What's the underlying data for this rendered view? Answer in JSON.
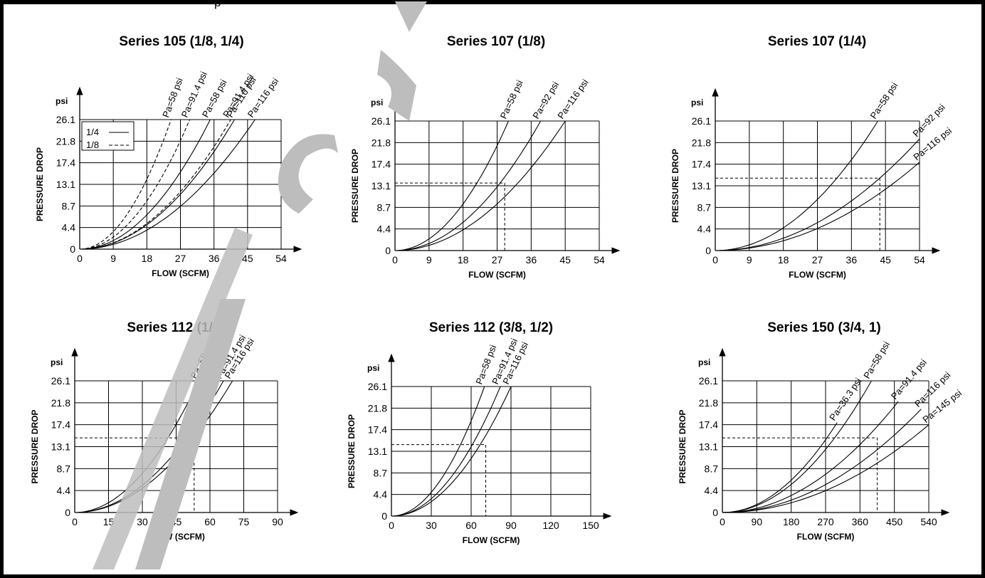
{
  "header_fragment": "p",
  "colors": {
    "ink": "#000000",
    "background": "#ffffff",
    "watermark": "#bdbdbd"
  },
  "watermark": {
    "text": "pre…",
    "description": "diagonal grey watermark stroke"
  },
  "chart_data": [
    {
      "type": "line",
      "title": "Series 105 (1/8, 1/4)",
      "xlabel": "FLOW (SCFM)",
      "ylabel": "PRESSURE DROP",
      "yunit": "psi",
      "xticks": [
        "0",
        "9",
        "18",
        "27",
        "36",
        "45",
        "54"
      ],
      "yticks": [
        "0",
        "4.4",
        "8.7",
        "13.1",
        "17.4",
        "21.8",
        "26.1"
      ],
      "xlim": [
        0,
        54
      ],
      "ylim": [
        0,
        26.1
      ],
      "grid": true,
      "legend": {
        "position": "top-left",
        "entries": [
          {
            "label": "1/4",
            "style": "solid"
          },
          {
            "label": "1/8",
            "style": "dashed"
          }
        ]
      },
      "series": [
        {
          "name": "Pa=58 psi",
          "style": "dashed",
          "x_at_top": 24.5
        },
        {
          "name": "Pa=91.4 psi",
          "style": "dashed",
          "x_at_top": 29.5
        },
        {
          "name": "Pa=58 psi",
          "style": "solid",
          "x_at_top": 35
        },
        {
          "name": "Pa=91.4 psi",
          "style": "dashed",
          "x_at_top": 40.5
        },
        {
          "name": "Pa=116 psi",
          "style": "solid",
          "x_at_top": 41.5
        },
        {
          "name": "Pa=116 psi",
          "style": "solid",
          "x_at_top": 47
        }
      ]
    },
    {
      "type": "line",
      "title": "Series 107 (1/8)",
      "xlabel": "FLOW (SCFM)",
      "ylabel": "PRESSURE DROP",
      "yunit": "psi",
      "xticks": [
        "0",
        "9",
        "18",
        "27",
        "36",
        "45",
        "54"
      ],
      "yticks": [
        "0",
        "4.4",
        "8.7",
        "13.1",
        "17.4",
        "21.8",
        "26.1"
      ],
      "xlim": [
        0,
        54
      ],
      "ylim": [
        0,
        26.1
      ],
      "grid": true,
      "example": {
        "x": 29,
        "y": 13.6
      },
      "series": [
        {
          "name": "Pa=58 psi",
          "x_at_top": 30
        },
        {
          "name": "Pa=92 psi",
          "x_at_top": 38.5
        },
        {
          "name": "Pa=116 psi",
          "x_at_top": 45
        }
      ]
    },
    {
      "type": "line",
      "title": "Series 107 (1/4)",
      "xlabel": "FLOW (SCFM)",
      "ylabel": "PRESSURE DROP",
      "yunit": "psi",
      "xticks": [
        "0",
        "9",
        "18",
        "27",
        "36",
        "45",
        "54"
      ],
      "yticks": [
        "0",
        "4.4",
        "8.7",
        "13.1",
        "17.4",
        "21.8",
        "26.1"
      ],
      "xlim": [
        0,
        54
      ],
      "ylim": [
        0,
        26.1
      ],
      "grid": true,
      "example": {
        "x": 43.5,
        "y": 14.6
      },
      "series": [
        {
          "name": "Pa=58 psi",
          "x_at_top": 43
        },
        {
          "name": "Pa=92 psi",
          "x_at_end": 54,
          "y_at_end": 22.5
        },
        {
          "name": "Pa=116 psi",
          "x_at_end": 54,
          "y_at_end": 17.8
        }
      ]
    },
    {
      "type": "line",
      "title": "Series 112 (1/4)",
      "xlabel": "FLOW (SCFM)",
      "ylabel": "PRESSURE DROP",
      "yunit": "psi",
      "xticks": [
        "0",
        "15",
        "30",
        "45",
        "60",
        "75",
        "90"
      ],
      "yticks": [
        "0",
        "4.4",
        "8.7",
        "13.1",
        "17.4",
        "21.8",
        "26.1"
      ],
      "xlim": [
        0,
        90
      ],
      "ylim": [
        0,
        26.1
      ],
      "grid": true,
      "example": {
        "x": 53,
        "y": 14.8
      },
      "series": [
        {
          "name": "Pa=58 psi",
          "x_at_top": 55
        },
        {
          "name": "Pa=91.4 psi",
          "x_at_top": 66
        },
        {
          "name": "Pa=116 psi",
          "x_at_top": 70
        }
      ]
    },
    {
      "type": "line",
      "title": "Series 112 (3/8, 1/2)",
      "xlabel": "FLOW (SCFM)",
      "ylabel": "PRESSURE DROP",
      "yunit": "psi",
      "xticks": [
        "0",
        "30",
        "60",
        "90",
        "120",
        "150"
      ],
      "yticks": [
        "0",
        "4.4",
        "8.7",
        "13.1",
        "17.4",
        "21.8",
        "26.1"
      ],
      "xlim": [
        0,
        150
      ],
      "ylim": [
        0,
        26.1
      ],
      "grid": true,
      "example": {
        "x": 71,
        "y": 14.4
      },
      "series": [
        {
          "name": "Pa=58 psi",
          "x_at_top": 70
        },
        {
          "name": "Pa=91.4 psi",
          "x_at_top": 82
        },
        {
          "name": "Pa=116 psi",
          "x_at_top": 90
        }
      ]
    },
    {
      "type": "line",
      "title": "Series 150 (3/4, 1)",
      "xlabel": "FLOW (SCFM)",
      "ylabel": "PRESSURE DROP",
      "yunit": "psi",
      "xticks": [
        "0",
        "90",
        "180",
        "270",
        "360",
        "450",
        "540"
      ],
      "yticks": [
        "0",
        "4.4",
        "8.7",
        "13.1",
        "17.4",
        "21.8",
        "26.1"
      ],
      "xlim": [
        0,
        540
      ],
      "ylim": [
        0,
        26.1
      ],
      "grid": true,
      "example": {
        "x": 405,
        "y": 14.8
      },
      "series": [
        {
          "name": "Pa=36.3 psi",
          "x_at_end": 300,
          "y_at_end": 17.8
        },
        {
          "name": "Pa=58 psi",
          "x_at_top": 390
        },
        {
          "name": "Pa=91.4 psi",
          "x_at_end": 460,
          "y_at_end": 22
        },
        {
          "name": "Pa=116 psi",
          "x_at_end": 520,
          "y_at_end": 20.5
        },
        {
          "name": "Pa=145 psi",
          "x_at_end": 540,
          "y_at_end": 17.4
        }
      ]
    }
  ]
}
